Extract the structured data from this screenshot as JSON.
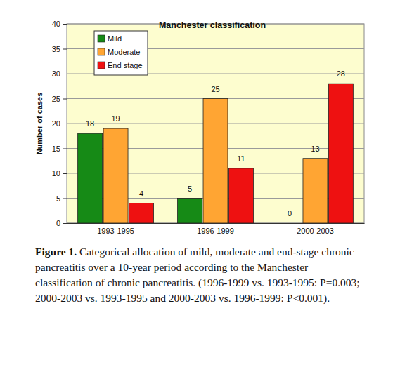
{
  "chart_data": {
    "type": "bar",
    "title": "Manchester classification",
    "y_label": "Number of cases",
    "categories": [
      "1993-1995",
      "1996-1999",
      "2000-2003"
    ],
    "series": [
      {
        "name": "Mild",
        "color": "#168a16",
        "values": [
          18,
          5,
          0
        ]
      },
      {
        "name": "Moderate",
        "color": "#ffa533",
        "values": [
          19,
          25,
          13
        ]
      },
      {
        "name": "End stage",
        "color": "#ee1111",
        "values": [
          4,
          11,
          28
        ]
      }
    ],
    "ylim": [
      0,
      40
    ],
    "yticks": [
      0,
      5,
      10,
      15,
      20,
      25,
      30,
      35,
      40
    ],
    "grid": true,
    "legend": "upper left",
    "data_labels": true,
    "caption": {
      "label": "Figure 1.",
      "text": "Categorical allocation of mild, moderate and end-stage chronic pancreatitis over a 10-year period according to the Manchester classification of chronic pancreatitis. (1996-1999 vs. 1993-1995: P=0.003; 2000-2003 vs. 1993-1995 and 2000-2003 vs. 1996-1999: P<0.001)."
    }
  }
}
